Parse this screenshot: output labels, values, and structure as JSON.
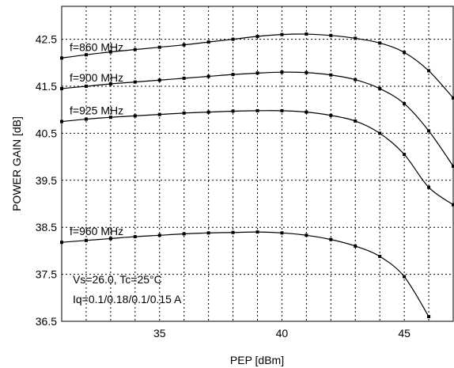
{
  "chart_data": {
    "type": "line",
    "xlabel": "PEP [dBm]",
    "ylabel": "POWER GAIN [dB]",
    "xlim": [
      31,
      47
    ],
    "ylim": [
      36.5,
      43.2
    ],
    "xticks": [
      35,
      40,
      45
    ],
    "yticks": [
      36.5,
      37.5,
      38.5,
      39.5,
      40.5,
      41.5,
      42.5
    ],
    "xtick_labels": [
      "35",
      "40",
      "45"
    ],
    "ytick_labels": [
      "36.5",
      "37.5",
      "38.5",
      "39.5",
      "40.5",
      "41.5",
      "42.5"
    ],
    "grid": true,
    "series": [
      {
        "name": "f=860 MHz",
        "x": [
          31,
          32,
          33,
          34,
          35,
          36,
          37,
          38,
          39,
          40,
          41,
          42,
          43,
          44,
          45,
          46,
          47
        ],
        "y": [
          42.1,
          42.17,
          42.23,
          42.28,
          42.33,
          42.38,
          42.44,
          42.5,
          42.56,
          42.6,
          42.61,
          42.58,
          42.52,
          42.42,
          42.22,
          41.83,
          41.25
        ]
      },
      {
        "name": "f=900 MHz",
        "x": [
          31,
          32,
          33,
          34,
          35,
          36,
          37,
          38,
          39,
          40,
          41,
          42,
          43,
          44,
          45,
          46,
          47
        ],
        "y": [
          41.45,
          41.5,
          41.55,
          41.59,
          41.63,
          41.67,
          41.71,
          41.75,
          41.78,
          41.8,
          41.79,
          41.74,
          41.64,
          41.45,
          41.13,
          40.55,
          39.8
        ]
      },
      {
        "name": "f=925 MHz",
        "x": [
          31,
          32,
          33,
          34,
          35,
          36,
          37,
          38,
          39,
          40,
          41,
          42,
          43,
          44,
          45,
          46,
          47
        ],
        "y": [
          40.75,
          40.8,
          40.84,
          40.87,
          40.9,
          40.93,
          40.95,
          40.97,
          40.98,
          40.98,
          40.95,
          40.88,
          40.76,
          40.5,
          40.05,
          39.35,
          38.98
        ]
      },
      {
        "name": "f=960 MHz",
        "x": [
          31,
          32,
          33,
          34,
          35,
          36,
          37,
          38,
          39,
          40,
          41,
          42,
          43,
          44,
          45,
          46
        ],
        "y": [
          38.18,
          38.22,
          38.26,
          38.3,
          38.33,
          38.36,
          38.38,
          38.39,
          38.4,
          38.38,
          38.33,
          38.24,
          38.1,
          37.88,
          37.45,
          36.6
        ]
      }
    ],
    "annotations": [
      "Vs=26.0,  Tc=25°C",
      "Iq=0.1/0.18/0.1/0.15  A"
    ]
  }
}
